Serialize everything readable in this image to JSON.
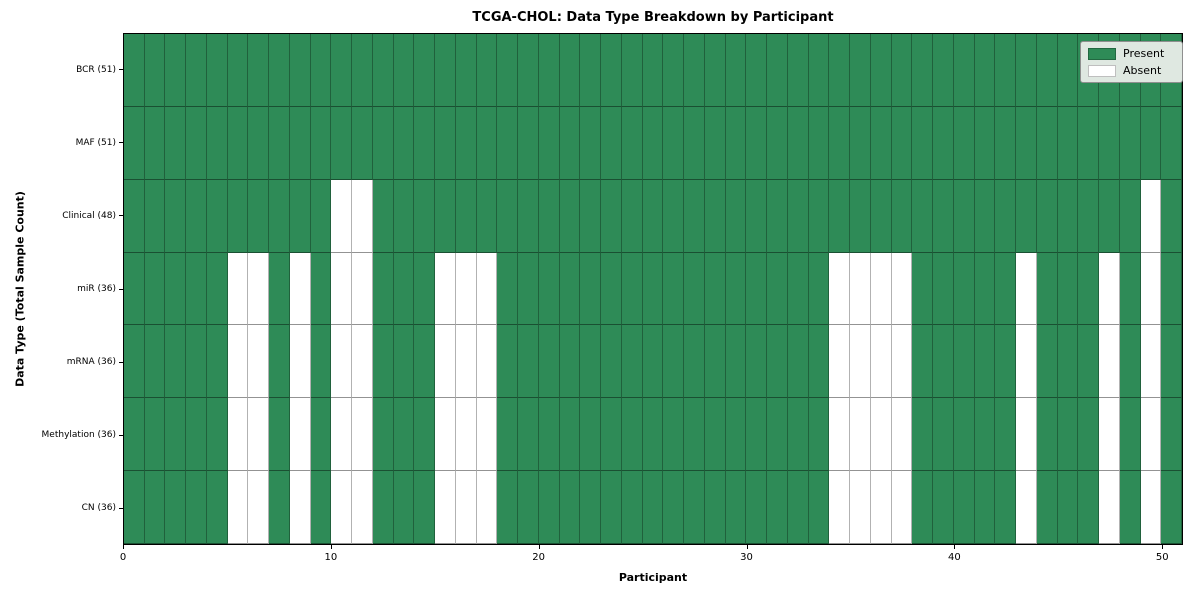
{
  "title": "TCGA-CHOL: Data Type Breakdown by Participant",
  "axes": {
    "xlabel": "Participant",
    "ylabel": "Data Type (Total Sample Count)"
  },
  "legend": {
    "items": [
      {
        "label": "Present",
        "color": "#2e8b57"
      },
      {
        "label": "Absent",
        "color": "#ffffff"
      }
    ]
  },
  "colors": {
    "present": "#2e8b57",
    "absent": "#ffffff",
    "legend_bg": "#dfe8e1"
  },
  "chart_data": {
    "type": "heatmap",
    "title": "TCGA-CHOL: Data Type Breakdown by Participant",
    "xlabel": "Participant",
    "ylabel": "Data Type (Total Sample Count)",
    "x_range": [
      0,
      51
    ],
    "n_participants": 51,
    "x_ticks": [
      0,
      10,
      20,
      30,
      40,
      50
    ],
    "legend_position": "upper right",
    "grid": "cell borders on",
    "value_encoding": {
      "present": 1,
      "absent": 0
    },
    "rows": [
      {
        "label": "BCR (51)",
        "data_type": "BCR",
        "total": 51,
        "absent_participants": []
      },
      {
        "label": "MAF (51)",
        "data_type": "MAF",
        "total": 51,
        "absent_participants": []
      },
      {
        "label": "Clinical (48)",
        "data_type": "Clinical",
        "total": 48,
        "absent_participants": [
          10,
          11,
          49
        ]
      },
      {
        "label": "miR (36)",
        "data_type": "miR",
        "total": 36,
        "absent_participants": [
          5,
          6,
          8,
          10,
          11,
          15,
          16,
          17,
          34,
          35,
          36,
          37,
          43,
          47,
          49
        ]
      },
      {
        "label": "mRNA (36)",
        "data_type": "mRNA",
        "total": 36,
        "absent_participants": [
          5,
          6,
          8,
          10,
          11,
          15,
          16,
          17,
          34,
          35,
          36,
          37,
          43,
          47,
          49
        ]
      },
      {
        "label": "Methylation (36)",
        "data_type": "Methylation",
        "total": 36,
        "absent_participants": [
          5,
          6,
          8,
          10,
          11,
          15,
          16,
          17,
          34,
          35,
          36,
          37,
          43,
          47,
          49
        ]
      },
      {
        "label": "CN (36)",
        "data_type": "CN",
        "total": 36,
        "absent_participants": [
          5,
          6,
          8,
          10,
          11,
          15,
          16,
          17,
          34,
          35,
          36,
          37,
          43,
          47,
          49
        ]
      }
    ]
  }
}
